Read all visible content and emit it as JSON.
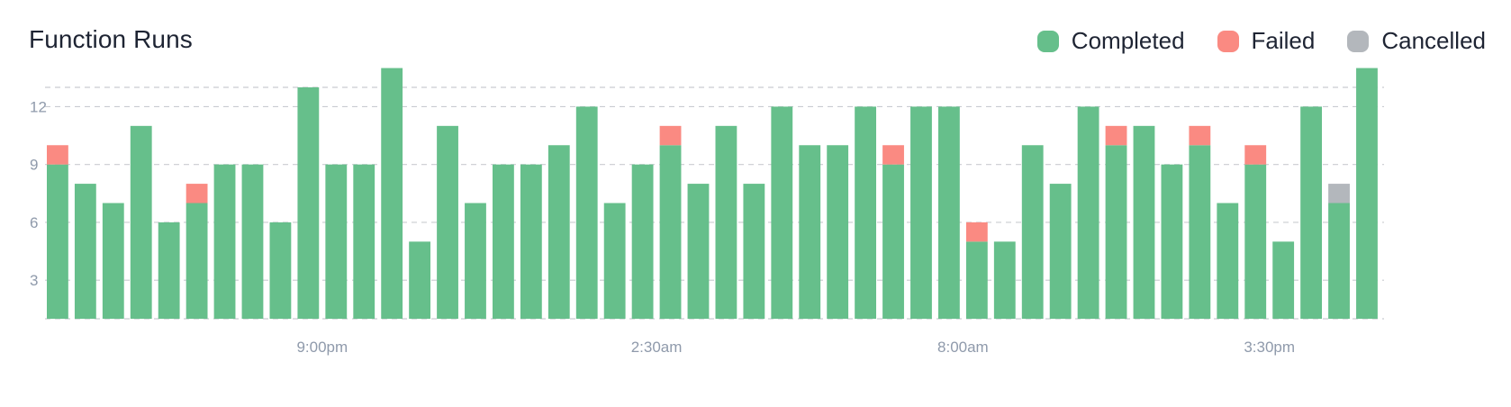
{
  "title": "Function Runs",
  "colors": {
    "completed": "#66bf8b",
    "failed": "#fa8a82",
    "cancelled": "#b3b7bc",
    "grid": "#c9ccd1",
    "axis_text": "#8f9aab"
  },
  "chart_data": {
    "type": "bar",
    "stacked": true,
    "title": "Function Runs",
    "ylim": [
      1,
      13
    ],
    "yticks": [
      3,
      6,
      9,
      12
    ],
    "grid": true,
    "legend_position": "top-right",
    "x_tick_labels": [
      {
        "index": 9.5,
        "label": "9:00pm"
      },
      {
        "index": 21.5,
        "label": "2:30am"
      },
      {
        "index": 32.5,
        "label": "8:00am"
      },
      {
        "index": 43.5,
        "label": "3:30pm"
      }
    ],
    "series": [
      {
        "name": "Completed",
        "color": "#66bf8b",
        "values": [
          8,
          7,
          6,
          10,
          5,
          6,
          8,
          8,
          5,
          12,
          8,
          8,
          13,
          4,
          10,
          6,
          8,
          8,
          9,
          11,
          6,
          8,
          9,
          7,
          10,
          7,
          11,
          9,
          9,
          11,
          8,
          11,
          11,
          4,
          4,
          9,
          7,
          11,
          9,
          10,
          8,
          9,
          6,
          8,
          4,
          11,
          6,
          13
        ]
      },
      {
        "name": "Failed",
        "color": "#fa8a82",
        "values": [
          1,
          0,
          0,
          0,
          0,
          1,
          0,
          0,
          0,
          0,
          0,
          0,
          0,
          0,
          0,
          0,
          0,
          0,
          0,
          0,
          0,
          0,
          1,
          0,
          0,
          0,
          0,
          0,
          0,
          0,
          1,
          0,
          0,
          1,
          0,
          0,
          0,
          0,
          1,
          0,
          0,
          1,
          0,
          1,
          0,
          0,
          0,
          0
        ]
      },
      {
        "name": "Cancelled",
        "color": "#b3b7bc",
        "values": [
          0,
          0,
          0,
          0,
          0,
          0,
          0,
          0,
          0,
          0,
          0,
          0,
          0,
          0,
          0,
          0,
          0,
          0,
          0,
          0,
          0,
          0,
          0,
          0,
          0,
          0,
          0,
          0,
          0,
          0,
          0,
          0,
          0,
          0,
          0,
          0,
          0,
          0,
          0,
          0,
          0,
          0,
          0,
          0,
          0,
          0,
          1,
          0
        ]
      }
    ]
  }
}
